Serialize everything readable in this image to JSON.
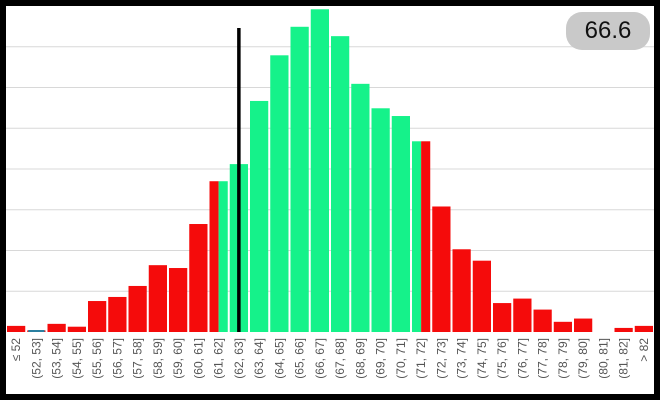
{
  "badge": {
    "value": "66.6"
  },
  "colors": {
    "in_range": "#15f28a",
    "out_of_range": "#f50b0b",
    "marker": "#000000",
    "grid": "#d8d8d8",
    "badge_bg": "#c9c9c9"
  },
  "chart_data": {
    "type": "bar",
    "title": "",
    "xlabel": "",
    "ylabel": "",
    "grid": true,
    "marker_value": 62.5,
    "categories": [
      "≤ 52",
      "(52, 53]",
      "(53, 54]",
      "(54, 55]",
      "(55, 56]",
      "(56, 57]",
      "(57, 58]",
      "(58, 59]",
      "(59, 60]",
      "(60, 61]",
      "(61, 62]",
      "(62, 63]",
      "(63, 64]",
      "(64, 65]",
      "(65, 66]",
      "(66, 67]",
      "(67, 68]",
      "(68, 69]",
      "(69, 70]",
      "(70, 71]",
      "(71, 72]",
      "(72, 73]",
      "(73, 74]",
      "(74, 75]",
      "(75, 76]",
      "(76, 77]",
      "(77, 78]",
      "(78, 79]",
      "(79, 80]",
      "(80, 81]",
      "(81, 82]",
      "> 82"
    ],
    "values": [
      1.5,
      0.4,
      2.0,
      1.3,
      7.6,
      8.6,
      11.3,
      16.4,
      15.7,
      26.5,
      37.0,
      41.2,
      56.7,
      67.9,
      74.9,
      79.2,
      72.6,
      60.9,
      54.9,
      53.0,
      46.8,
      30.8,
      20.3,
      17.5,
      7.1,
      8.2,
      5.5,
      2.5,
      3.3,
      0,
      1.0,
      1.5
    ],
    "split_bar": {
      "category": "(61, 62]",
      "left_color": "out_of_range",
      "right_color": "in_range"
    },
    "bar_colors": [
      "out_of_range",
      "out_of_range",
      "out_of_range",
      "out_of_range",
      "out_of_range",
      "out_of_range",
      "out_of_range",
      "out_of_range",
      "out_of_range",
      "out_of_range",
      "split",
      "in_range",
      "in_range",
      "in_range",
      "in_range",
      "in_range",
      "in_range",
      "in_range",
      "in_range",
      "in_range",
      "split_rev",
      "out_of_range",
      "out_of_range",
      "out_of_range",
      "out_of_range",
      "out_of_range",
      "out_of_range",
      "out_of_range",
      "out_of_range",
      "out_of_range",
      "out_of_range",
      "out_of_range"
    ],
    "ylim": [
      0,
      80
    ],
    "y_gridlines": [
      10,
      20,
      30,
      40,
      50,
      60,
      70
    ]
  }
}
